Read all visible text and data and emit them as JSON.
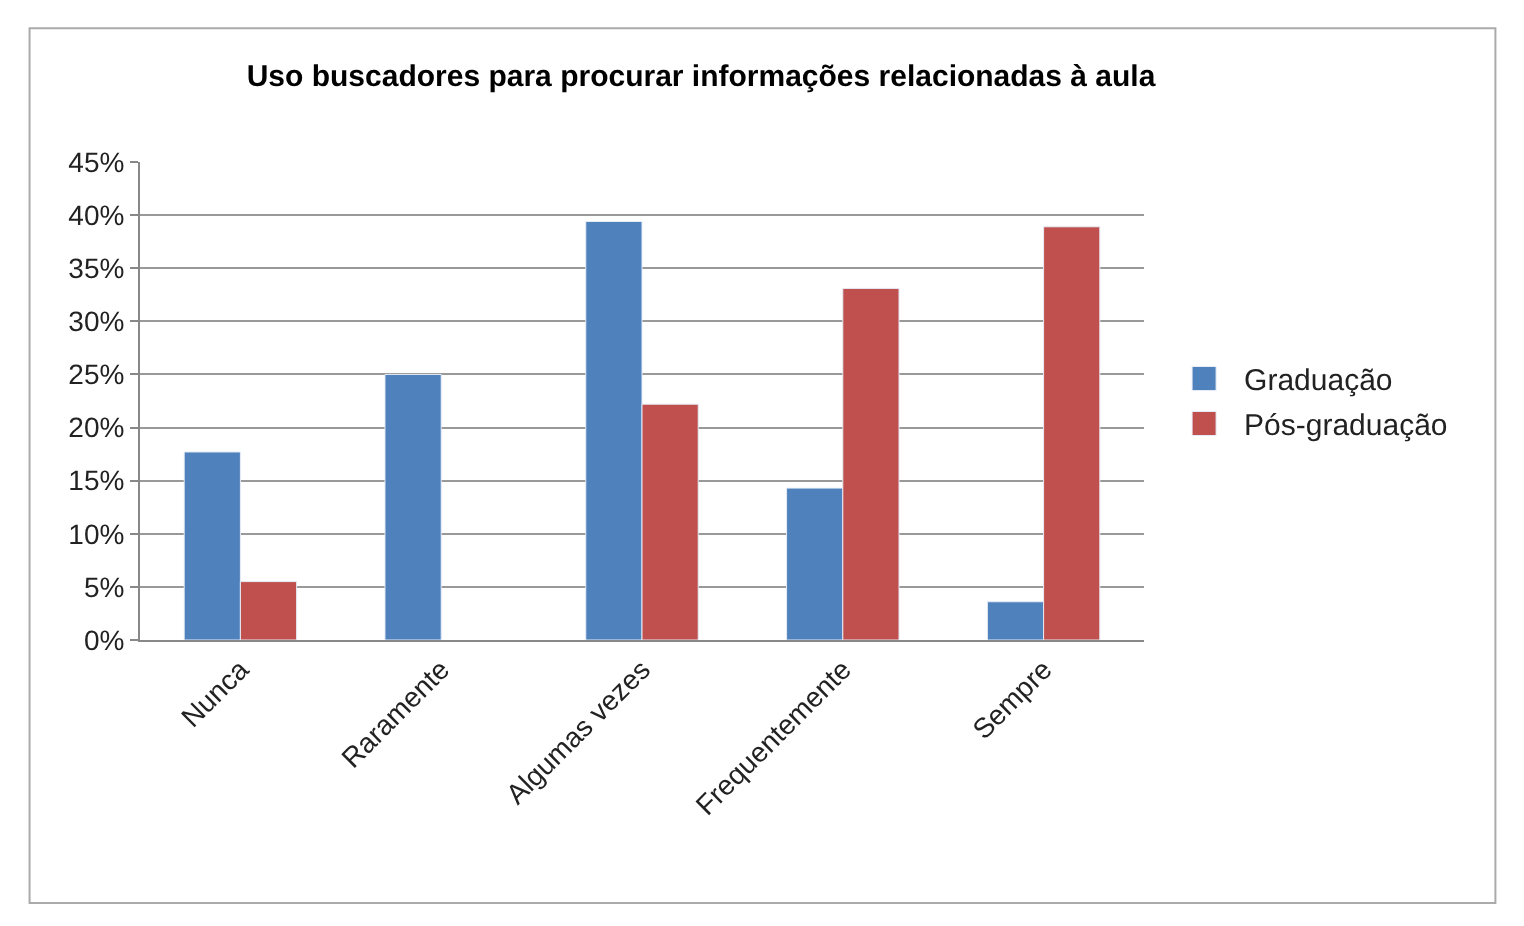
{
  "chart_data": {
    "type": "bar",
    "title": "Uso buscadores para procurar informações relacionadas à aula",
    "categories": [
      "Nunca",
      "Raramente",
      "Algumas vezes",
      "Frequentemente",
      "Sempre"
    ],
    "series": [
      {
        "name": "Graduação",
        "color": "#4f81bd",
        "values": [
          17.7,
          25,
          39.4,
          14.3,
          3.6
        ]
      },
      {
        "name": "Pós-graduação",
        "color": "#c0504d",
        "values": [
          5.5,
          null,
          22.2,
          33.1,
          38.9
        ]
      }
    ],
    "ylim": [
      0,
      45
    ],
    "yticks": [
      {
        "value": 0,
        "label": "0%"
      },
      {
        "value": 5,
        "label": "5%"
      },
      {
        "value": 10,
        "label": "10%"
      },
      {
        "value": 15,
        "label": "15%"
      },
      {
        "value": 20,
        "label": "20%"
      },
      {
        "value": 25,
        "label": "25%"
      },
      {
        "value": 30,
        "label": "30%"
      },
      {
        "value": 35,
        "label": "35%"
      },
      {
        "value": 40,
        "label": "40%"
      },
      {
        "value": 45,
        "label": "45%"
      }
    ],
    "grid": "y",
    "legend": "right"
  }
}
